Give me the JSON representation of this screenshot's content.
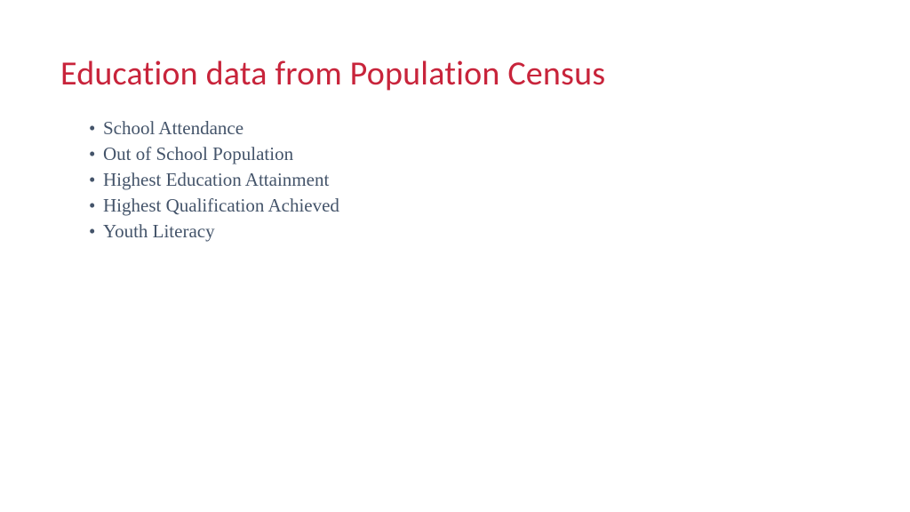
{
  "slide": {
    "title": "Education data from Population Census",
    "title_color": "#c8243b",
    "body_color": "#44546a",
    "background_color": "#ffffff",
    "title_fontsize": 38,
    "body_fontsize": 21,
    "bullets": [
      "School Attendance",
      "Out of School Population",
      "Highest Education Attainment",
      "Highest Qualification Achieved",
      "Youth Literacy"
    ]
  }
}
